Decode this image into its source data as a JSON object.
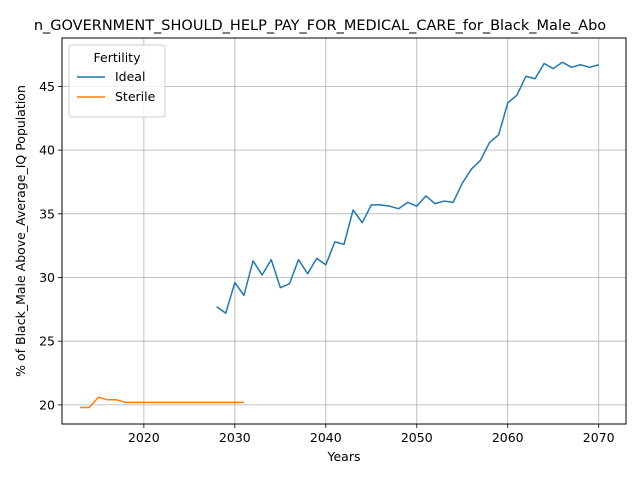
{
  "chart_data": {
    "type": "line",
    "title": "n_GOVERNMENT_SHOULD_HELP_PAY_FOR_MEDICAL_CARE_for_Black_Male_Abo",
    "xlabel": "Years",
    "ylabel": "% of Black_Male Above_Average_IQ Population",
    "xlim": [
      2011,
      2073
    ],
    "ylim": [
      18.5,
      48.8
    ],
    "xticks": [
      2020,
      2030,
      2040,
      2050,
      2060,
      2070
    ],
    "yticks": [
      20,
      25,
      30,
      35,
      40,
      45
    ],
    "grid": true,
    "legend": {
      "title": "Fertility",
      "placement": "top-left"
    },
    "series": [
      {
        "name": "Ideal",
        "color": "#1f77b4",
        "x": [
          2028,
          2029,
          2030,
          2031,
          2032,
          2033,
          2034,
          2035,
          2036,
          2037,
          2038,
          2039,
          2040,
          2041,
          2042,
          2043,
          2044,
          2045,
          2046,
          2047,
          2048,
          2049,
          2050,
          2051,
          2052,
          2053,
          2054,
          2055,
          2056,
          2057,
          2058,
          2059,
          2060,
          2061,
          2062,
          2063,
          2064,
          2065,
          2066,
          2067,
          2068,
          2069,
          2070
        ],
        "values": [
          27.7,
          27.2,
          29.6,
          28.6,
          31.3,
          30.2,
          31.4,
          29.2,
          29.5,
          31.4,
          30.3,
          31.5,
          31.0,
          32.8,
          32.6,
          35.3,
          34.3,
          35.7,
          35.7,
          35.6,
          35.4,
          35.9,
          35.6,
          36.4,
          35.8,
          36.0,
          35.9,
          37.4,
          38.5,
          39.2,
          40.6,
          41.2,
          43.7,
          44.3,
          45.8,
          45.6,
          46.8,
          46.4,
          46.9,
          46.5,
          46.7,
          46.5,
          46.7
        ]
      },
      {
        "name": "Sterile",
        "color": "#ff7f0e",
        "x": [
          2013,
          2014,
          2015,
          2016,
          2017,
          2018,
          2019,
          2020,
          2021,
          2022,
          2023,
          2024,
          2025,
          2026,
          2027,
          2028,
          2029,
          2030,
          2031
        ],
        "values": [
          19.8,
          19.8,
          20.6,
          20.4,
          20.4,
          20.2,
          20.2,
          20.2,
          20.2,
          20.2,
          20.2,
          20.2,
          20.2,
          20.2,
          20.2,
          20.2,
          20.2,
          20.2,
          20.2
        ]
      }
    ]
  }
}
